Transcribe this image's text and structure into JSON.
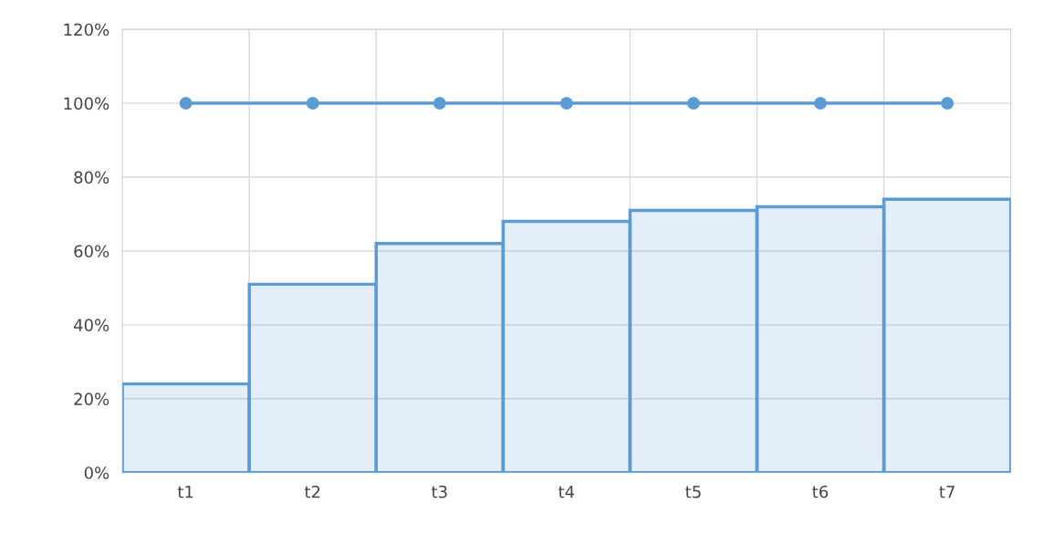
{
  "chart_data": {
    "type": "bar",
    "categories": [
      "t1",
      "t2",
      "t3",
      "t4",
      "t5",
      "t6",
      "t7"
    ],
    "series": [
      {
        "color": "#5b9bd5",
        "values": [
          24,
          51,
          62,
          68,
          71,
          72,
          74
        ]
      },
      {
        "type": "line",
        "color": "#5b9bd5",
        "values": [
          100,
          100,
          100,
          100,
          100,
          100,
          100
        ]
      }
    ],
    "ylim": [
      0,
      120
    ],
    "yticks": [
      {
        "value": 0,
        "label": "0%"
      },
      {
        "value": 20,
        "label": "20%"
      },
      {
        "value": 40,
        "label": "40%"
      },
      {
        "value": 60,
        "label": "60%"
      },
      {
        "value": 80,
        "label": "80%"
      },
      {
        "value": 100,
        "label": "100%"
      },
      {
        "value": 120,
        "label": "120%"
      }
    ],
    "grid": true,
    "marker": "circle",
    "legend": false
  }
}
